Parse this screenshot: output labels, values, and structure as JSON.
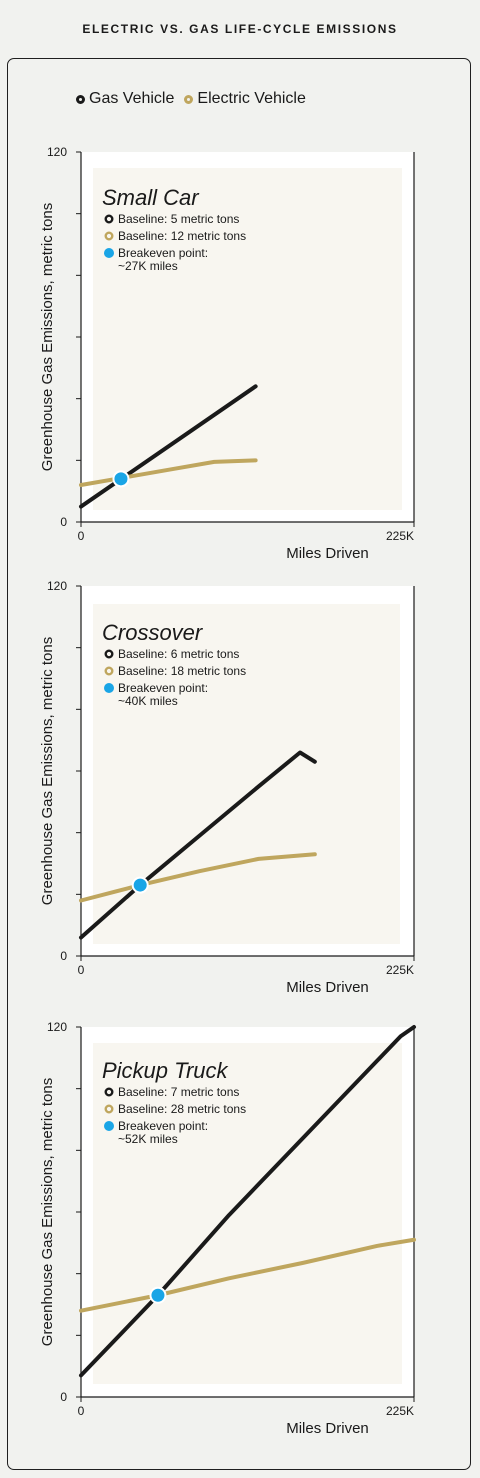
{
  "header": {
    "title": "ELECTRIC VS. GAS LIFE-CYCLE EMISSIONS"
  },
  "legend": {
    "items": [
      {
        "label": "Gas Vehicle",
        "color": "#1a1a1a"
      },
      {
        "label": "Electric Vehicle",
        "color": "#bfa65e"
      }
    ]
  },
  "colors": {
    "gas": "#1a1a1a",
    "electric": "#bfa65e",
    "breakeven": "#1aa5e6",
    "panel_bg": "#f8f6f0"
  },
  "chart_data": [
    {
      "type": "line",
      "title": "Small Car",
      "xlabel": "Miles Driven",
      "ylabel": "Greenhouse Gas Emissions, metric tons",
      "xlim": [
        0,
        225
      ],
      "ylim": [
        0,
        120
      ],
      "x_tick_labels": [
        "0",
        "225K"
      ],
      "y_tick_labels": [
        "0",
        "120"
      ],
      "annotations": [
        "Baseline: 5 metric tons",
        "Baseline: 12 metric tons",
        "Breakeven point:",
        "~27K miles"
      ],
      "series": [
        {
          "name": "Gas Vehicle",
          "x": [
            0,
            118
          ],
          "y": [
            5,
            44
          ]
        },
        {
          "name": "Electric Vehicle",
          "x": [
            0,
            30,
            60,
            90,
            118
          ],
          "y": [
            12,
            14.5,
            17,
            19.5,
            20
          ]
        }
      ],
      "breakeven": {
        "x": 27,
        "y": 14
      }
    },
    {
      "type": "line",
      "title": "Crossover",
      "xlabel": "Miles Driven",
      "ylabel": "Greenhouse Gas Emissions, metric tons",
      "xlim": [
        0,
        225
      ],
      "ylim": [
        0,
        120
      ],
      "x_tick_labels": [
        "0",
        "225K"
      ],
      "y_tick_labels": [
        "0",
        "120"
      ],
      "annotations": [
        "Baseline: 6 metric tons",
        "Baseline: 18 metric tons",
        "Breakeven point:",
        "~40K miles"
      ],
      "series": [
        {
          "name": "Gas Vehicle",
          "x": [
            0,
            40,
            80,
            120,
            148,
            158
          ],
          "y": [
            6,
            23,
            39,
            55,
            66,
            63
          ]
        },
        {
          "name": "Electric Vehicle",
          "x": [
            0,
            40,
            80,
            120,
            158
          ],
          "y": [
            18,
            23,
            27.5,
            31.5,
            33
          ]
        }
      ],
      "breakeven": {
        "x": 40,
        "y": 23
      }
    },
    {
      "type": "line",
      "title": "Pickup Truck",
      "xlabel": "Miles Driven",
      "ylabel": "Greenhouse Gas Emissions, metric tons",
      "xlim": [
        0,
        225
      ],
      "ylim": [
        0,
        120
      ],
      "x_tick_labels": [
        "0",
        "225K"
      ],
      "y_tick_labels": [
        "0",
        "120"
      ],
      "annotations": [
        "Baseline: 7 metric tons",
        "Baseline: 28 metric tons",
        "Breakeven point:",
        "~52K miles"
      ],
      "series": [
        {
          "name": "Gas Vehicle",
          "x": [
            0,
            52,
            100,
            150,
            200,
            216,
            225
          ],
          "y": [
            7,
            33,
            59,
            84,
            109,
            117,
            120
          ]
        },
        {
          "name": "Electric Vehicle",
          "x": [
            0,
            52,
            100,
            150,
            200,
            225
          ],
          "y": [
            28,
            33,
            38.5,
            43.5,
            49,
            51
          ]
        }
      ],
      "breakeven": {
        "x": 52,
        "y": 33
      }
    }
  ]
}
